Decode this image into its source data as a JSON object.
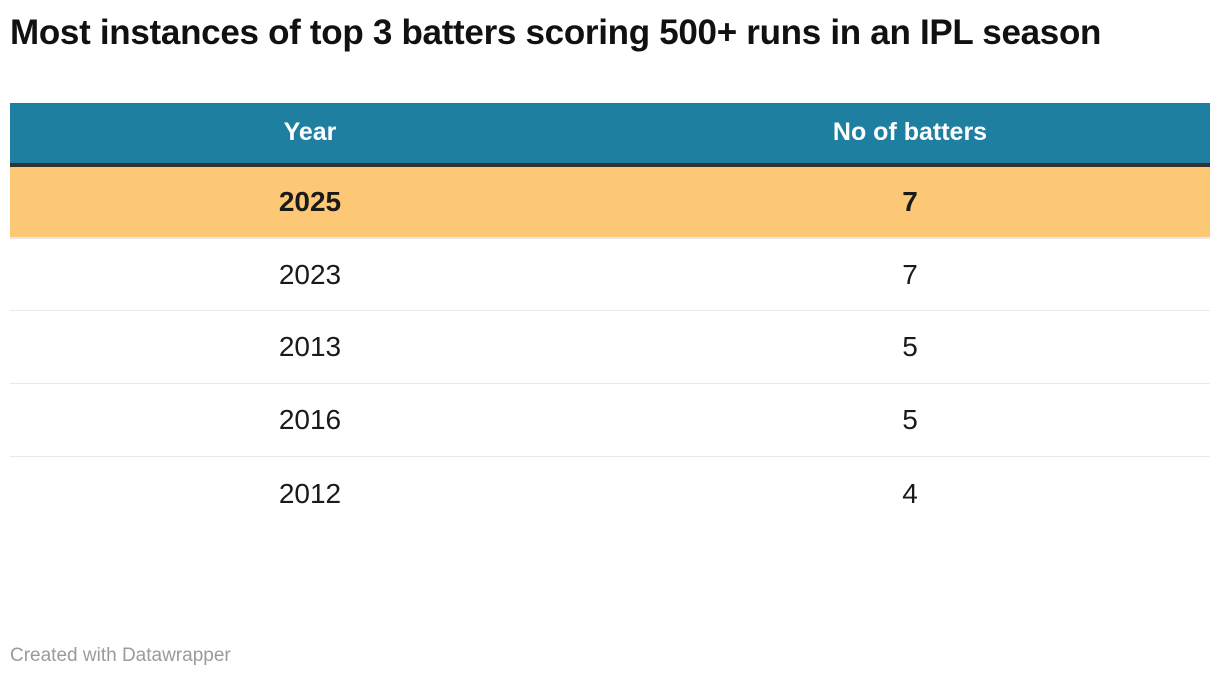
{
  "title": "Most instances of top 3 batters scoring 500+ runs in an IPL season",
  "table": {
    "columns": [
      "Year",
      "No of batters"
    ],
    "rows": [
      {
        "year": "2025",
        "batters": "7",
        "highlight": true
      },
      {
        "year": "2023",
        "batters": "7",
        "highlight": false
      },
      {
        "year": "2013",
        "batters": "5",
        "highlight": false
      },
      {
        "year": "2016",
        "batters": "5",
        "highlight": false
      },
      {
        "year": "2012",
        "batters": "4",
        "highlight": false
      }
    ]
  },
  "footer": {
    "credit": "Created with Datawrapper"
  },
  "colors": {
    "header_bg": "#1f7fa0",
    "header_text": "#ffffff",
    "header_border": "#333333",
    "highlight_bg": "#fdc876",
    "divider": "#e8e8e8",
    "text": "#1a1a1a",
    "credit": "#9b9b9b"
  },
  "chart_data": {
    "type": "table",
    "title": "Most instances of top 3 batters scoring 500+ runs in an IPL season",
    "columns": [
      "Year",
      "No of batters"
    ],
    "rows": [
      [
        "2025",
        7
      ],
      [
        "2023",
        7
      ],
      [
        "2013",
        5
      ],
      [
        "2016",
        5
      ],
      [
        "2012",
        4
      ]
    ],
    "highlighted_row": "2025",
    "legend_position": "none",
    "grid": "row-dividers"
  }
}
